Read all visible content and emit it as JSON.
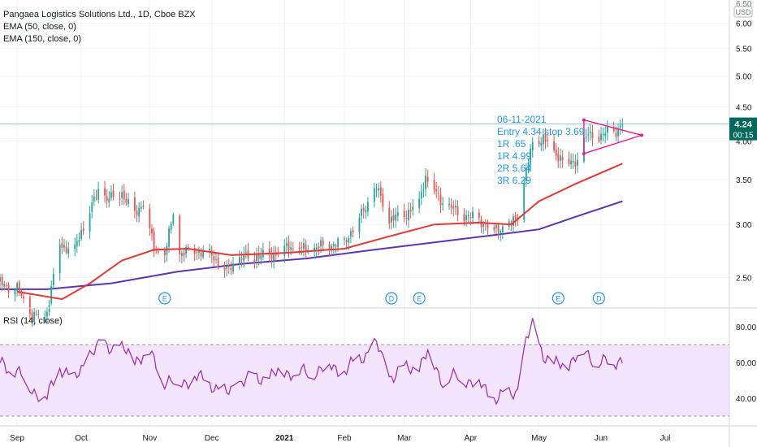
{
  "header": {
    "title": "Pangaea Logistics Solutions Ltd., 1D, Cboe BZX",
    "ema1": "EMA (50, close, 0)",
    "ema2": "EMA (150, close, 0)"
  },
  "annotation": {
    "lines": [
      "06-11-2021",
      "Entry 4.34  stop 3.69",
      "1R .65",
      "1R 4.99",
      "2R 5.64",
      "3R 6.29"
    ],
    "color": "#2196f3"
  },
  "price_tag": {
    "value": "4.24",
    "timer": "00:15"
  },
  "currency": "USD",
  "top_partial_label": "6.50",
  "event_markers": [
    {
      "label": "E",
      "x": "2020-11-09"
    },
    {
      "label": "D",
      "x": "2021-02-23"
    },
    {
      "label": "E",
      "x": "2021-03-08"
    },
    {
      "label": "E",
      "x": "2021-05-12"
    },
    {
      "label": "D",
      "x": "2021-05-31"
    }
  ],
  "rsi_label": "RSI (14, close)",
  "colors": {
    "up": "#26a69a",
    "down": "#ef5350",
    "ema50": "#e53935",
    "ema150": "#5e35b1",
    "rsi": "#9c27b0",
    "rsi_band": "#f3e5fb",
    "triangle": "#e91e8c",
    "price_line": "#26a69a"
  },
  "chart_data": [
    {
      "type": "candlestick",
      "title": "Pangaea Logistics Solutions Ltd., 1D, Cboe BZX",
      "yscale": "log",
      "ylim": [
        2.25,
        6.5
      ],
      "xlim": [
        "2020-08-24",
        "2021-07-31"
      ],
      "y_ticks": [
        "2.50",
        "3.00",
        "3.50",
        "4.00",
        "4.50",
        "5.00",
        "5.50",
        "6.00"
      ],
      "x_ticks": [
        {
          "label": "Sep",
          "x": "2020-09-01"
        },
        {
          "label": "Oct",
          "x": "2020-10-01"
        },
        {
          "label": "Nov",
          "x": "2020-11-02"
        },
        {
          "label": "Dec",
          "x": "2020-12-01"
        },
        {
          "label": "2021",
          "x": "2021-01-04"
        },
        {
          "label": "Feb",
          "x": "2021-02-01"
        },
        {
          "label": "Mar",
          "x": "2021-03-01"
        },
        {
          "label": "Apr",
          "x": "2021-04-01"
        },
        {
          "label": "May",
          "x": "2021-05-03"
        },
        {
          "label": "Jun",
          "x": "2021-06-01"
        },
        {
          "label": "Jul",
          "x": "2021-07-01"
        }
      ],
      "close_path": [
        [
          "2020-08-24",
          2.45
        ],
        [
          "2020-09-01",
          2.4
        ],
        [
          "2020-09-08",
          2.18
        ],
        [
          "2020-09-15",
          2.22
        ],
        [
          "2020-09-21",
          2.8
        ],
        [
          "2020-09-28",
          2.75
        ],
        [
          "2020-10-05",
          3.15
        ],
        [
          "2020-10-09",
          3.35
        ],
        [
          "2020-10-14",
          3.28
        ],
        [
          "2020-10-20",
          3.35
        ],
        [
          "2020-10-26",
          3.1
        ],
        [
          "2020-10-30",
          3.25
        ],
        [
          "2020-11-04",
          2.75
        ],
        [
          "2020-11-09",
          2.7
        ],
        [
          "2020-11-13",
          3.1
        ],
        [
          "2020-11-16",
          2.72
        ],
        [
          "2020-11-24",
          2.75
        ],
        [
          "2020-12-01",
          2.7
        ],
        [
          "2020-12-08",
          2.55
        ],
        [
          "2020-12-15",
          2.68
        ],
        [
          "2020-12-28",
          2.7
        ],
        [
          "2021-01-06",
          2.78
        ],
        [
          "2021-01-15",
          2.75
        ],
        [
          "2021-01-25",
          2.8
        ],
        [
          "2021-02-01",
          2.82
        ],
        [
          "2021-02-10",
          3.15
        ],
        [
          "2021-02-16",
          3.4
        ],
        [
          "2021-02-22",
          3.05
        ],
        [
          "2021-03-01",
          3.1
        ],
        [
          "2021-03-08",
          3.25
        ],
        [
          "2021-03-11",
          3.55
        ],
        [
          "2021-03-18",
          3.25
        ],
        [
          "2021-03-26",
          3.12
        ],
        [
          "2021-04-05",
          3.05
        ],
        [
          "2021-04-12",
          2.95
        ],
        [
          "2021-04-20",
          3.0
        ],
        [
          "2021-04-23",
          3.1
        ],
        [
          "2021-04-27",
          3.6
        ],
        [
          "2021-04-30",
          3.95
        ],
        [
          "2021-05-05",
          4.05
        ],
        [
          "2021-05-10",
          3.85
        ],
        [
          "2021-05-17",
          3.7
        ],
        [
          "2021-05-21",
          3.75
        ],
        [
          "2021-05-25",
          4.05
        ],
        [
          "2021-05-28",
          4.1
        ],
        [
          "2021-06-01",
          4.05
        ],
        [
          "2021-06-04",
          4.12
        ],
        [
          "2021-06-09",
          4.15
        ],
        [
          "2021-06-11",
          4.24
        ]
      ],
      "ema50_path": [
        [
          "2020-09-01",
          2.38
        ],
        [
          "2020-09-22",
          2.32
        ],
        [
          "2020-10-05",
          2.45
        ],
        [
          "2020-10-20",
          2.65
        ],
        [
          "2020-11-04",
          2.75
        ],
        [
          "2020-11-20",
          2.76
        ],
        [
          "2020-12-10",
          2.7
        ],
        [
          "2021-01-04",
          2.72
        ],
        [
          "2021-02-01",
          2.76
        ],
        [
          "2021-02-22",
          2.88
        ],
        [
          "2021-03-15",
          3.0
        ],
        [
          "2021-04-05",
          3.02
        ],
        [
          "2021-04-20",
          3.0
        ],
        [
          "2021-05-03",
          3.25
        ],
        [
          "2021-05-20",
          3.45
        ],
        [
          "2021-06-11",
          3.7
        ]
      ],
      "ema150_path": [
        [
          "2020-08-24",
          2.4
        ],
        [
          "2020-09-15",
          2.4
        ],
        [
          "2020-10-15",
          2.45
        ],
        [
          "2020-11-15",
          2.55
        ],
        [
          "2020-12-15",
          2.62
        ],
        [
          "2021-01-15",
          2.67
        ],
        [
          "2021-02-15",
          2.75
        ],
        [
          "2021-03-15",
          2.82
        ],
        [
          "2021-04-15",
          2.9
        ],
        [
          "2021-05-03",
          2.95
        ],
        [
          "2021-05-20",
          3.08
        ],
        [
          "2021-06-11",
          3.25
        ]
      ],
      "current_price": 4.24,
      "triangle": {
        "apex": [
          "2021-06-20",
          4.08
        ],
        "upper_start": [
          "2021-05-24",
          4.3
        ],
        "lower_start": [
          "2021-05-24",
          3.83
        ]
      }
    },
    {
      "type": "line",
      "title": "RSI (14, close)",
      "ylim": [
        25,
        90
      ],
      "y_ticks": [
        "40.00",
        "60.00",
        "80.00"
      ],
      "band": [
        30,
        70
      ],
      "x": [
        "2020-08-24",
        "2020-09-01",
        "2020-09-08",
        "2020-09-15",
        "2020-09-21",
        "2020-09-28",
        "2020-10-05",
        "2020-10-12",
        "2020-10-19",
        "2020-10-26",
        "2020-11-02",
        "2020-11-09",
        "2020-11-16",
        "2020-11-23",
        "2020-12-01",
        "2020-12-08",
        "2020-12-15",
        "2020-12-28",
        "2021-01-04",
        "2021-01-15",
        "2021-01-25",
        "2021-02-01",
        "2021-02-08",
        "2021-02-16",
        "2021-02-22",
        "2021-03-01",
        "2021-03-08",
        "2021-03-12",
        "2021-03-19",
        "2021-03-26",
        "2021-04-05",
        "2021-04-12",
        "2021-04-19",
        "2021-04-23",
        "2021-04-27",
        "2021-04-30",
        "2021-05-05",
        "2021-05-10",
        "2021-05-17",
        "2021-05-24",
        "2021-05-31",
        "2021-06-07",
        "2021-06-11"
      ],
      "values": [
        60,
        55,
        45,
        40,
        58,
        50,
        65,
        70,
        68,
        62,
        65,
        50,
        48,
        52,
        48,
        42,
        50,
        52,
        55,
        54,
        58,
        55,
        62,
        70,
        52,
        56,
        58,
        65,
        50,
        52,
        48,
        40,
        42,
        45,
        72,
        80,
        65,
        58,
        60,
        66,
        60,
        60,
        63
      ]
    }
  ]
}
